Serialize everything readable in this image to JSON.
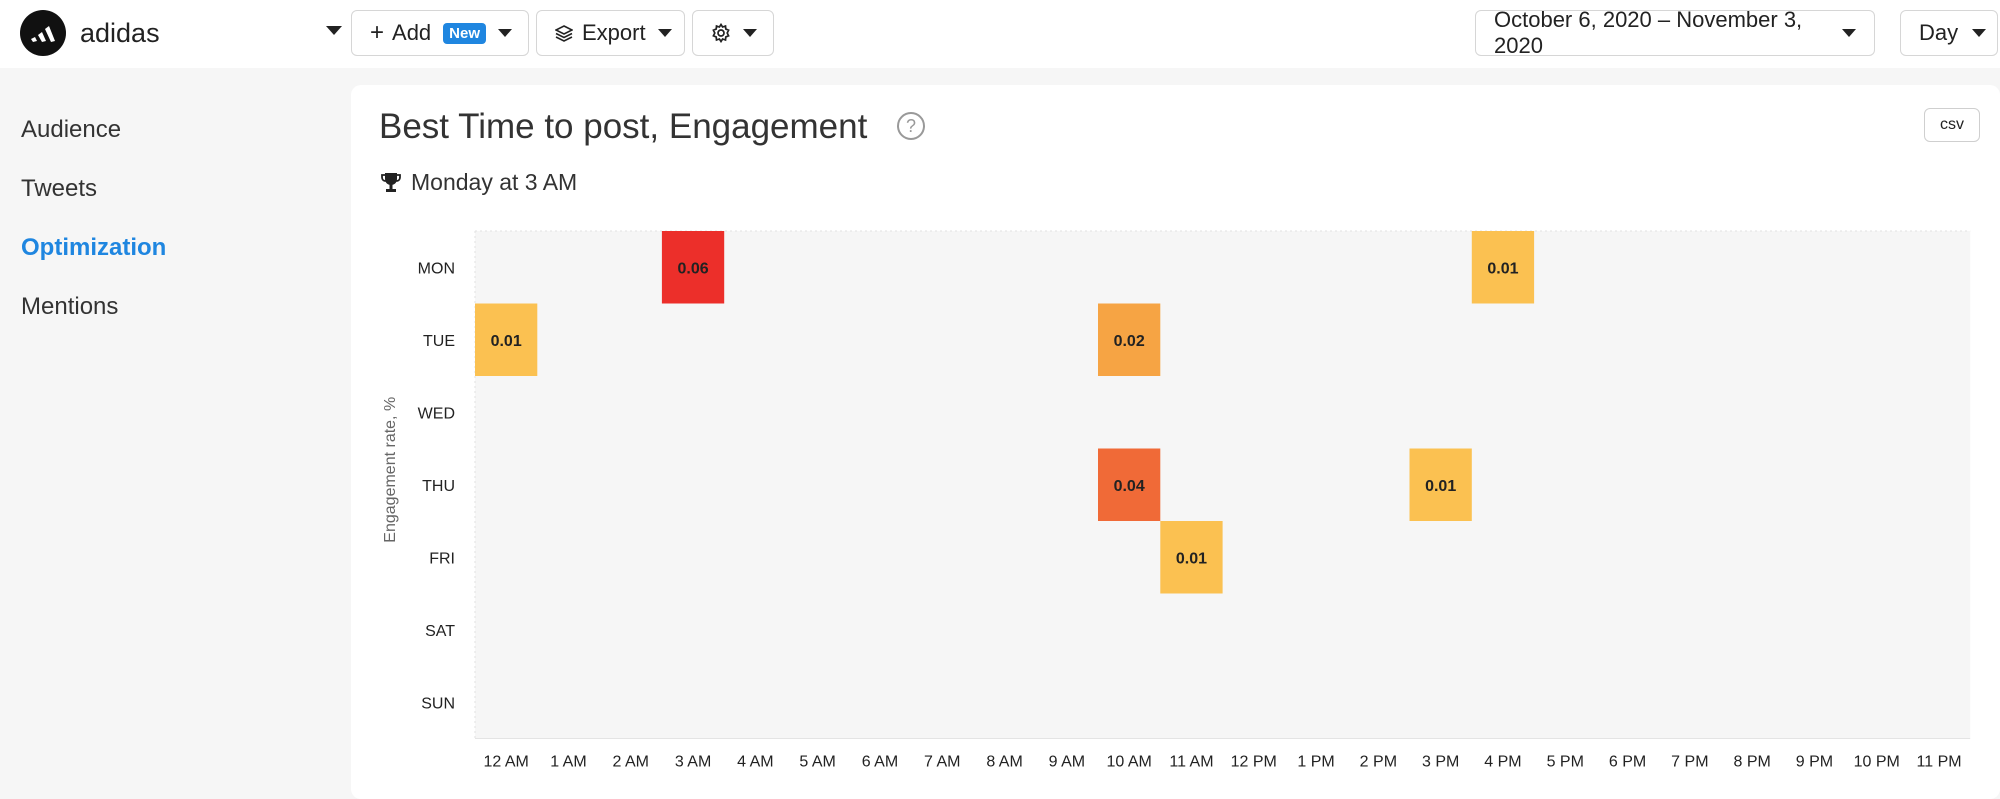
{
  "header": {
    "brand_name": "adidas",
    "add_label": "Add",
    "new_badge": "New",
    "export_label": "Export",
    "date_range": "October 6, 2020 – November 3, 2020",
    "granularity": "Day"
  },
  "sidebar": {
    "items": [
      {
        "label": "Audience",
        "active": false
      },
      {
        "label": "Tweets",
        "active": false
      },
      {
        "label": "Optimization",
        "active": true
      },
      {
        "label": "Mentions",
        "active": false
      }
    ]
  },
  "card": {
    "title": "Best Time to post, Engagement",
    "help_glyph": "?",
    "csv_label": "csv",
    "best_time": "Monday at 3 AM"
  },
  "colors": {
    "accent": "#1f86e0",
    "heat_low": "#fbc151",
    "heat_mid": "#f6a444",
    "heat_high": "#f06a37",
    "heat_max": "#ec2f2a"
  },
  "chart_data": {
    "type": "heatmap",
    "ylabel": "Engagement rate, %",
    "rows": [
      "MON",
      "TUE",
      "WED",
      "THU",
      "FRI",
      "SAT",
      "SUN"
    ],
    "columns": [
      "12 AM",
      "1 AM",
      "2 AM",
      "3 AM",
      "4 AM",
      "5 AM",
      "6 AM",
      "7 AM",
      "8 AM",
      "9 AM",
      "10 AM",
      "11 AM",
      "12 PM",
      "1 PM",
      "2 PM",
      "3 PM",
      "4 PM",
      "5 PM",
      "6 PM",
      "7 PM",
      "8 PM",
      "9 PM",
      "10 PM",
      "11 PM"
    ],
    "cells": [
      {
        "row": "MON",
        "col": "3 AM",
        "value": 0.06
      },
      {
        "row": "MON",
        "col": "4 PM",
        "value": 0.01
      },
      {
        "row": "TUE",
        "col": "12 AM",
        "value": 0.01
      },
      {
        "row": "TUE",
        "col": "10 AM",
        "value": 0.02
      },
      {
        "row": "THU",
        "col": "10 AM",
        "value": 0.04
      },
      {
        "row": "THU",
        "col": "3 PM",
        "value": 0.01
      },
      {
        "row": "FRI",
        "col": "11 AM",
        "value": 0.01
      }
    ]
  }
}
